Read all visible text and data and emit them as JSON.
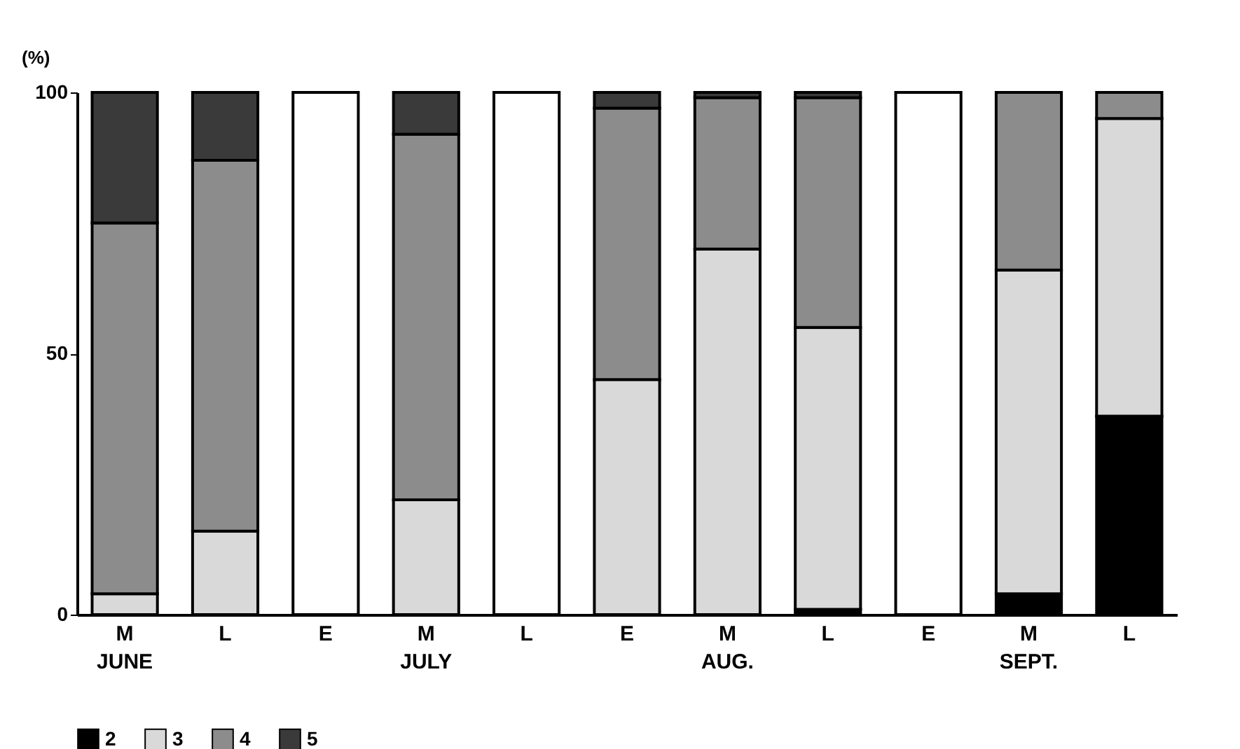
{
  "chart_data": {
    "type": "bar",
    "stacked": true,
    "ylabel": "(%)",
    "legend": "bottom",
    "categories": [
      "M\nJUNE",
      "L",
      "E",
      "M\nJULY",
      "L",
      "E",
      "M\nAUG.",
      "L",
      "E",
      "M\nSEPT.",
      "L"
    ],
    "ylim": [
      0,
      100
    ],
    "yticks": [
      0,
      50,
      100
    ],
    "series": [
      {
        "name": "2",
        "color": "#000000",
        "values": [
          null,
          null,
          null,
          null,
          null,
          null,
          null,
          1,
          null,
          4,
          38
        ]
      },
      {
        "name": "3",
        "color": "#d9d9d9",
        "values": [
          4,
          16,
          null,
          22,
          null,
          45,
          70,
          54,
          null,
          62,
          57
        ]
      },
      {
        "name": "4",
        "color": "#8c8c8c",
        "values": [
          71,
          71,
          null,
          70,
          null,
          52,
          29,
          44,
          null,
          34,
          5
        ]
      },
      {
        "name": "5",
        "color": "#3a3a3a",
        "values": [
          25,
          13,
          null,
          8,
          null,
          3,
          1,
          1,
          null,
          null,
          null
        ]
      },
      {
        "color": "#ffffff",
        "values": [
          null,
          null,
          100,
          null,
          100,
          null,
          null,
          null,
          100,
          null,
          null
        ]
      }
    ]
  }
}
